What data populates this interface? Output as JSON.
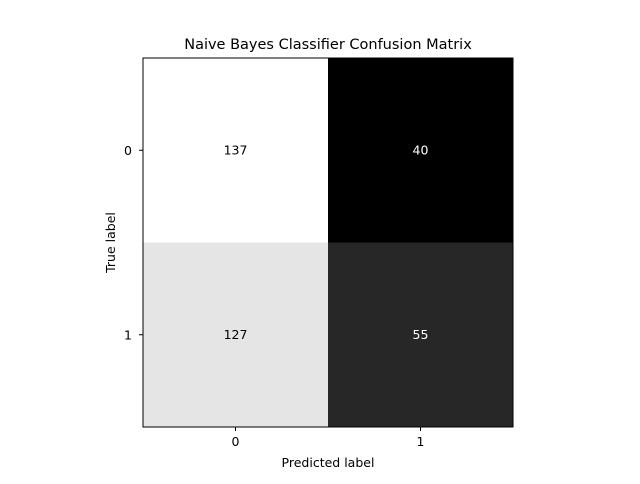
{
  "chart_data": {
    "type": "heatmap",
    "title": "Naive Bayes Classifier Confusion Matrix",
    "xlabel": "Predicted label",
    "ylabel": "True label",
    "x_categories": [
      "0",
      "1"
    ],
    "y_categories": [
      "0",
      "1"
    ],
    "values": [
      [
        137,
        40
      ],
      [
        127,
        55
      ]
    ],
    "colormap": "gray",
    "vmin": 40,
    "vmax": 137,
    "text_color_dark_cells": "#ffffff",
    "text_color_light_cells": "#000000",
    "colorbar": false
  }
}
